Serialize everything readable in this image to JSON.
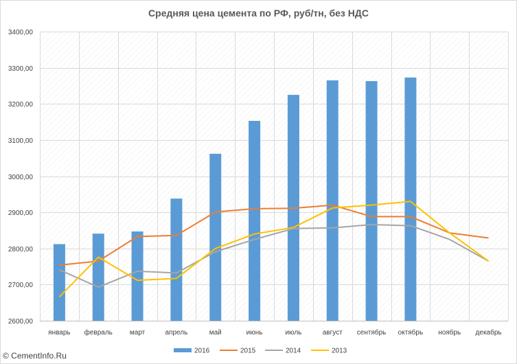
{
  "footer": {
    "credit": "© CementInfo.Ru"
  },
  "chart_data": {
    "type": "bar+line",
    "title": "Средняя цена цемента по РФ, руб/тн, без НДС",
    "categories": [
      "январь",
      "февраль",
      "март",
      "апрель",
      "май",
      "июнь",
      "июль",
      "август",
      "сентябрь",
      "октябрь",
      "ноябрь",
      "декабрь"
    ],
    "ylim": [
      2600,
      3400
    ],
    "yticks": [
      "2600,00",
      "2700,00",
      "2800,00",
      "2900,00",
      "3000,00",
      "3100,00",
      "3200,00",
      "3300,00",
      "3400,00"
    ],
    "grid": true,
    "legend_position": "bottom",
    "series": [
      {
        "name": "2016",
        "type": "bar",
        "color": "#5b9bd5",
        "values": [
          2812,
          2841,
          2847,
          2938,
          3062,
          3153,
          3225,
          3265,
          3263,
          3273,
          null,
          null
        ]
      },
      {
        "name": "2015",
        "type": "line",
        "color": "#ed7d31",
        "values": [
          2754,
          2765,
          2833,
          2836,
          2901,
          2910,
          2911,
          2920,
          2888,
          2888,
          2843,
          2829
        ]
      },
      {
        "name": "2014",
        "type": "line",
        "color": "#a5a5a5",
        "values": [
          2741,
          2693,
          2737,
          2732,
          2791,
          2825,
          2855,
          2857,
          2866,
          2863,
          2825,
          2765
        ]
      },
      {
        "name": "2013",
        "type": "line",
        "color": "#ffc000",
        "values": [
          2666,
          2776,
          2712,
          2717,
          2800,
          2840,
          2858,
          2912,
          2920,
          2930,
          2843,
          2765
        ]
      }
    ]
  }
}
